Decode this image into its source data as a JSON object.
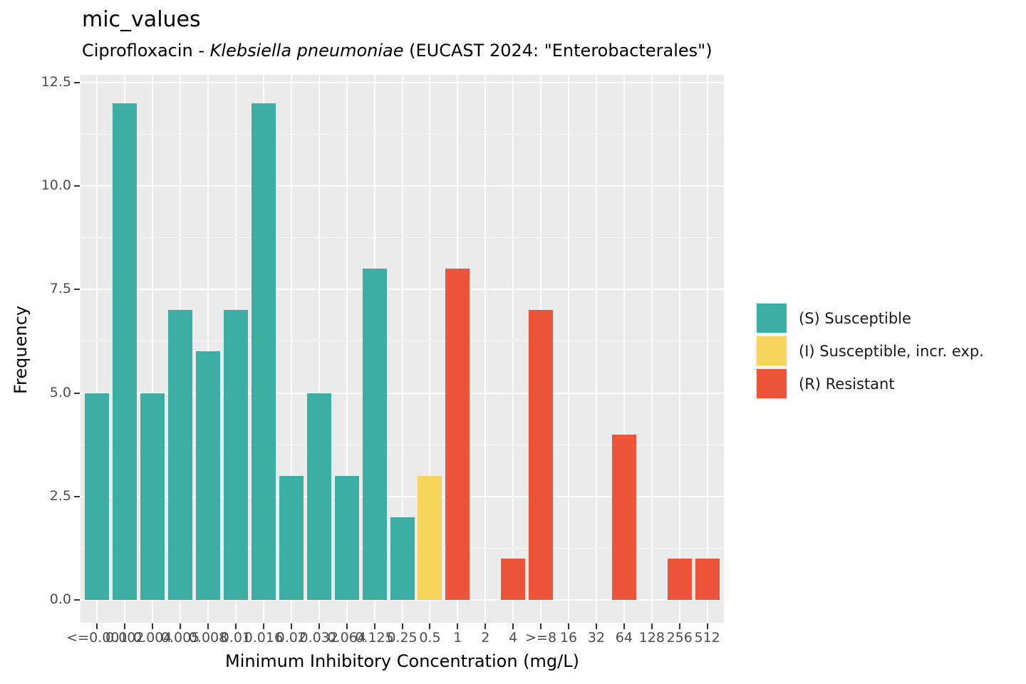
{
  "header": {
    "title": "mic_values",
    "subtitle_prefix": "Ciprofloxacin - ",
    "subtitle_italic": "Klebsiella pneumoniae",
    "subtitle_suffix": " (EUCAST 2024: \"Enterobacterales\")"
  },
  "chart_data": {
    "type": "bar",
    "title": "mic_values",
    "subtitle": "Ciprofloxacin - Klebsiella pneumoniae (EUCAST 2024: \"Enterobacterales\")",
    "xlabel": "Minimum Inhibitory Concentration (mg/L)",
    "ylabel": "Frequency",
    "categories": [
      "<=0.001",
      "0.002",
      "0.004",
      "0.005",
      "0.008",
      "0.01",
      "0.016",
      "0.02",
      "0.032",
      "0.064",
      "0.125",
      "0.25",
      "0.5",
      "1",
      "2",
      "4",
      ">=8",
      "16",
      "32",
      "64",
      "128",
      "256",
      "512"
    ],
    "values": [
      5,
      12,
      5,
      7,
      6,
      7,
      12,
      3,
      5,
      3,
      8,
      2,
      3,
      8,
      0,
      1,
      7,
      0,
      0,
      4,
      0,
      1,
      1
    ],
    "sir": [
      "S",
      "S",
      "S",
      "S",
      "S",
      "S",
      "S",
      "S",
      "S",
      "S",
      "S",
      "S",
      "I",
      "R",
      "R",
      "R",
      "R",
      "R",
      "R",
      "R",
      "R",
      "R",
      "R"
    ],
    "total_n": 100,
    "colors": {
      "S": "#3CAEA3",
      "I": "#F6D55C",
      "R": "#ED553B"
    },
    "panel_color": "#EBEBEB",
    "gridline_color": "#ffffff",
    "y_ticks": [
      {
        "label": "0.0",
        "value": 0
      },
      {
        "label": "2.5",
        "value": 2.5
      },
      {
        "label": "5.0",
        "value": 5
      },
      {
        "label": "7.5",
        "value": 7.5
      },
      {
        "label": "10.0",
        "value": 10
      },
      {
        "label": "12.5",
        "value": 12.5
      }
    ],
    "y_minor": [
      1.25,
      3.75,
      6.25,
      8.75,
      11.25
    ],
    "ylim": [
      0,
      12.5
    ],
    "grid": true,
    "legend_position": "right"
  },
  "legend": {
    "items": [
      {
        "label": "(S) Susceptible",
        "color": "#3CAEA3"
      },
      {
        "label": "(I) Susceptible, incr. exp.",
        "color": "#F6D55C"
      },
      {
        "label": "(R) Resistant",
        "color": "#ED553B"
      }
    ]
  }
}
